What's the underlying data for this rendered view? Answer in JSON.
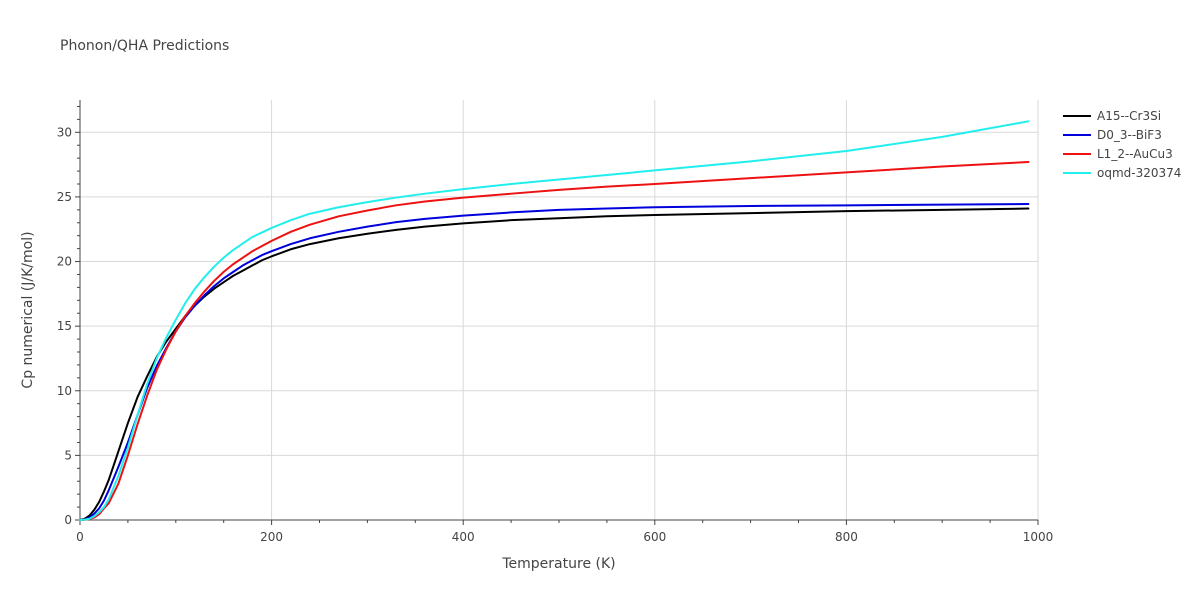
{
  "chart_data": {
    "type": "line",
    "title": "Phonon/QHA Predictions",
    "xlabel": "Temperature (K)",
    "ylabel": "Cp numerical (J/K/mol)",
    "xlim": [
      0,
      1000
    ],
    "ylim": [
      0,
      32.5
    ],
    "xticks": [
      0,
      200,
      400,
      600,
      800,
      1000
    ],
    "yticks": [
      0,
      5,
      10,
      15,
      20,
      25,
      30
    ],
    "grid": true,
    "legend_position": "top-right",
    "series": [
      {
        "name": "A15--Cr3Si",
        "color": "#000000",
        "x": [
          0,
          5,
          10,
          15,
          20,
          25,
          30,
          40,
          50,
          60,
          70,
          80,
          90,
          100,
          110,
          120,
          130,
          140,
          150,
          160,
          170,
          180,
          190,
          200,
          220,
          240,
          270,
          300,
          330,
          360,
          400,
          450,
          500,
          550,
          600,
          700,
          800,
          900,
          990
        ],
        "y": [
          0,
          0.1,
          0.35,
          0.8,
          1.4,
          2.2,
          3.1,
          5.3,
          7.5,
          9.5,
          11.1,
          12.6,
          13.8,
          14.8,
          15.8,
          16.6,
          17.3,
          17.9,
          18.4,
          18.9,
          19.3,
          19.7,
          20.1,
          20.4,
          20.95,
          21.35,
          21.8,
          22.15,
          22.45,
          22.7,
          22.95,
          23.2,
          23.35,
          23.5,
          23.6,
          23.75,
          23.9,
          24.0,
          24.1
        ]
      },
      {
        "name": "D0_3--BiF3",
        "color": "#0000dd",
        "x": [
          0,
          5,
          10,
          15,
          20,
          25,
          30,
          40,
          50,
          60,
          70,
          80,
          90,
          100,
          110,
          120,
          130,
          140,
          150,
          160,
          170,
          180,
          190,
          200,
          220,
          240,
          270,
          300,
          330,
          360,
          400,
          450,
          500,
          550,
          600,
          700,
          800,
          900,
          990
        ],
        "y": [
          0,
          0.05,
          0.2,
          0.5,
          0.9,
          1.5,
          2.3,
          4.1,
          6.0,
          8.1,
          10.2,
          11.9,
          13.3,
          14.6,
          15.7,
          16.6,
          17.4,
          18.1,
          18.7,
          19.2,
          19.7,
          20.1,
          20.5,
          20.8,
          21.35,
          21.8,
          22.3,
          22.7,
          23.05,
          23.3,
          23.55,
          23.8,
          24.0,
          24.1,
          24.2,
          24.3,
          24.35,
          24.4,
          24.45
        ]
      },
      {
        "name": "L1_2--AuCu3",
        "color": "#ee1111",
        "x": [
          0,
          5,
          10,
          15,
          20,
          25,
          30,
          40,
          50,
          60,
          70,
          80,
          90,
          100,
          110,
          120,
          130,
          140,
          150,
          160,
          170,
          180,
          190,
          200,
          220,
          240,
          270,
          300,
          330,
          360,
          400,
          450,
          500,
          550,
          600,
          700,
          800,
          900,
          990
        ],
        "y": [
          0,
          0.02,
          0.08,
          0.2,
          0.45,
          0.9,
          1.3,
          2.8,
          5.0,
          7.4,
          9.6,
          11.6,
          13.2,
          14.6,
          15.8,
          16.8,
          17.7,
          18.5,
          19.2,
          19.8,
          20.3,
          20.8,
          21.2,
          21.6,
          22.3,
          22.85,
          23.5,
          23.95,
          24.35,
          24.65,
          24.95,
          25.25,
          25.55,
          25.8,
          26.0,
          26.45,
          26.9,
          27.35,
          27.7
        ]
      },
      {
        "name": "oqmd-320374",
        "color": "#22eeee",
        "x": [
          0,
          5,
          10,
          15,
          20,
          25,
          30,
          40,
          50,
          60,
          70,
          80,
          90,
          100,
          110,
          120,
          130,
          140,
          150,
          160,
          170,
          180,
          190,
          200,
          220,
          240,
          270,
          300,
          330,
          360,
          400,
          450,
          500,
          550,
          600,
          700,
          800,
          900,
          990
        ],
        "y": [
          0,
          0.03,
          0.1,
          0.3,
          0.6,
          1.0,
          1.6,
          3.4,
          5.6,
          8.1,
          10.5,
          12.5,
          14.1,
          15.5,
          16.8,
          17.9,
          18.8,
          19.6,
          20.3,
          20.9,
          21.4,
          21.9,
          22.25,
          22.6,
          23.2,
          23.7,
          24.2,
          24.6,
          24.95,
          25.25,
          25.6,
          26.0,
          26.35,
          26.7,
          27.05,
          27.75,
          28.55,
          29.65,
          30.85
        ]
      }
    ]
  }
}
